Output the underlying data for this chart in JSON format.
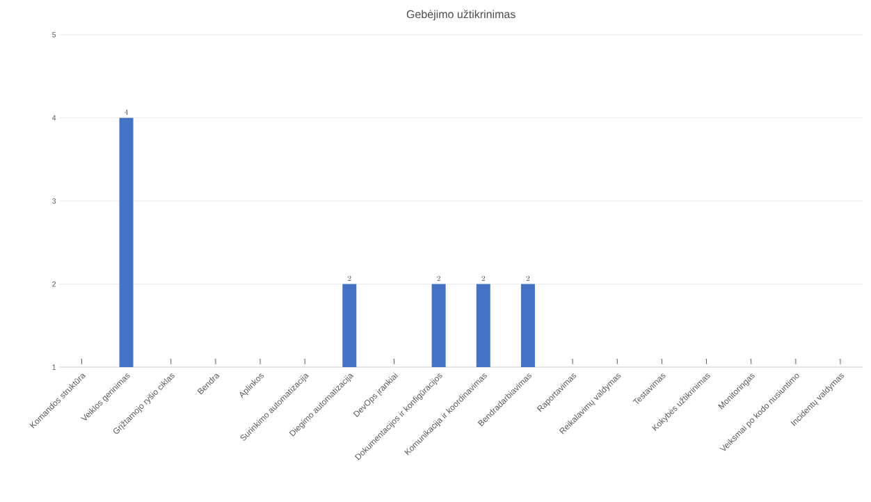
{
  "chart_data": {
    "type": "bar",
    "title": "Gebėjimo užtikrinimas",
    "categories": [
      "Komandos struktūra",
      "Veiklos gerinimas",
      "Grįžtamojo ryšio ciklas",
      "Bendra",
      "Aplinkos",
      "Surinkimo automatizacija",
      "Diegimo automatizacija",
      "DevOps įrankiai",
      "Dokumentacijos ir konfigūracijos",
      "Komunikacija ir koordinavimas",
      "Bendradarbiavimas",
      "Raportavimas",
      "Reikalavimų valdymas",
      "Testavimas",
      "Kokybės užtikrinimas",
      "Monitoringas",
      "Veiksmai po kodo nusiuntimo",
      "Incidentų valdymas"
    ],
    "values": [
      1,
      4,
      1,
      1,
      1,
      1,
      2,
      1,
      2,
      2,
      2,
      1,
      1,
      1,
      1,
      1,
      1,
      1
    ],
    "color": "#4472c4",
    "ylim": [
      1,
      5
    ],
    "yticks": [
      1,
      2,
      3,
      4,
      5
    ],
    "grid": "y",
    "data_labels": true
  }
}
